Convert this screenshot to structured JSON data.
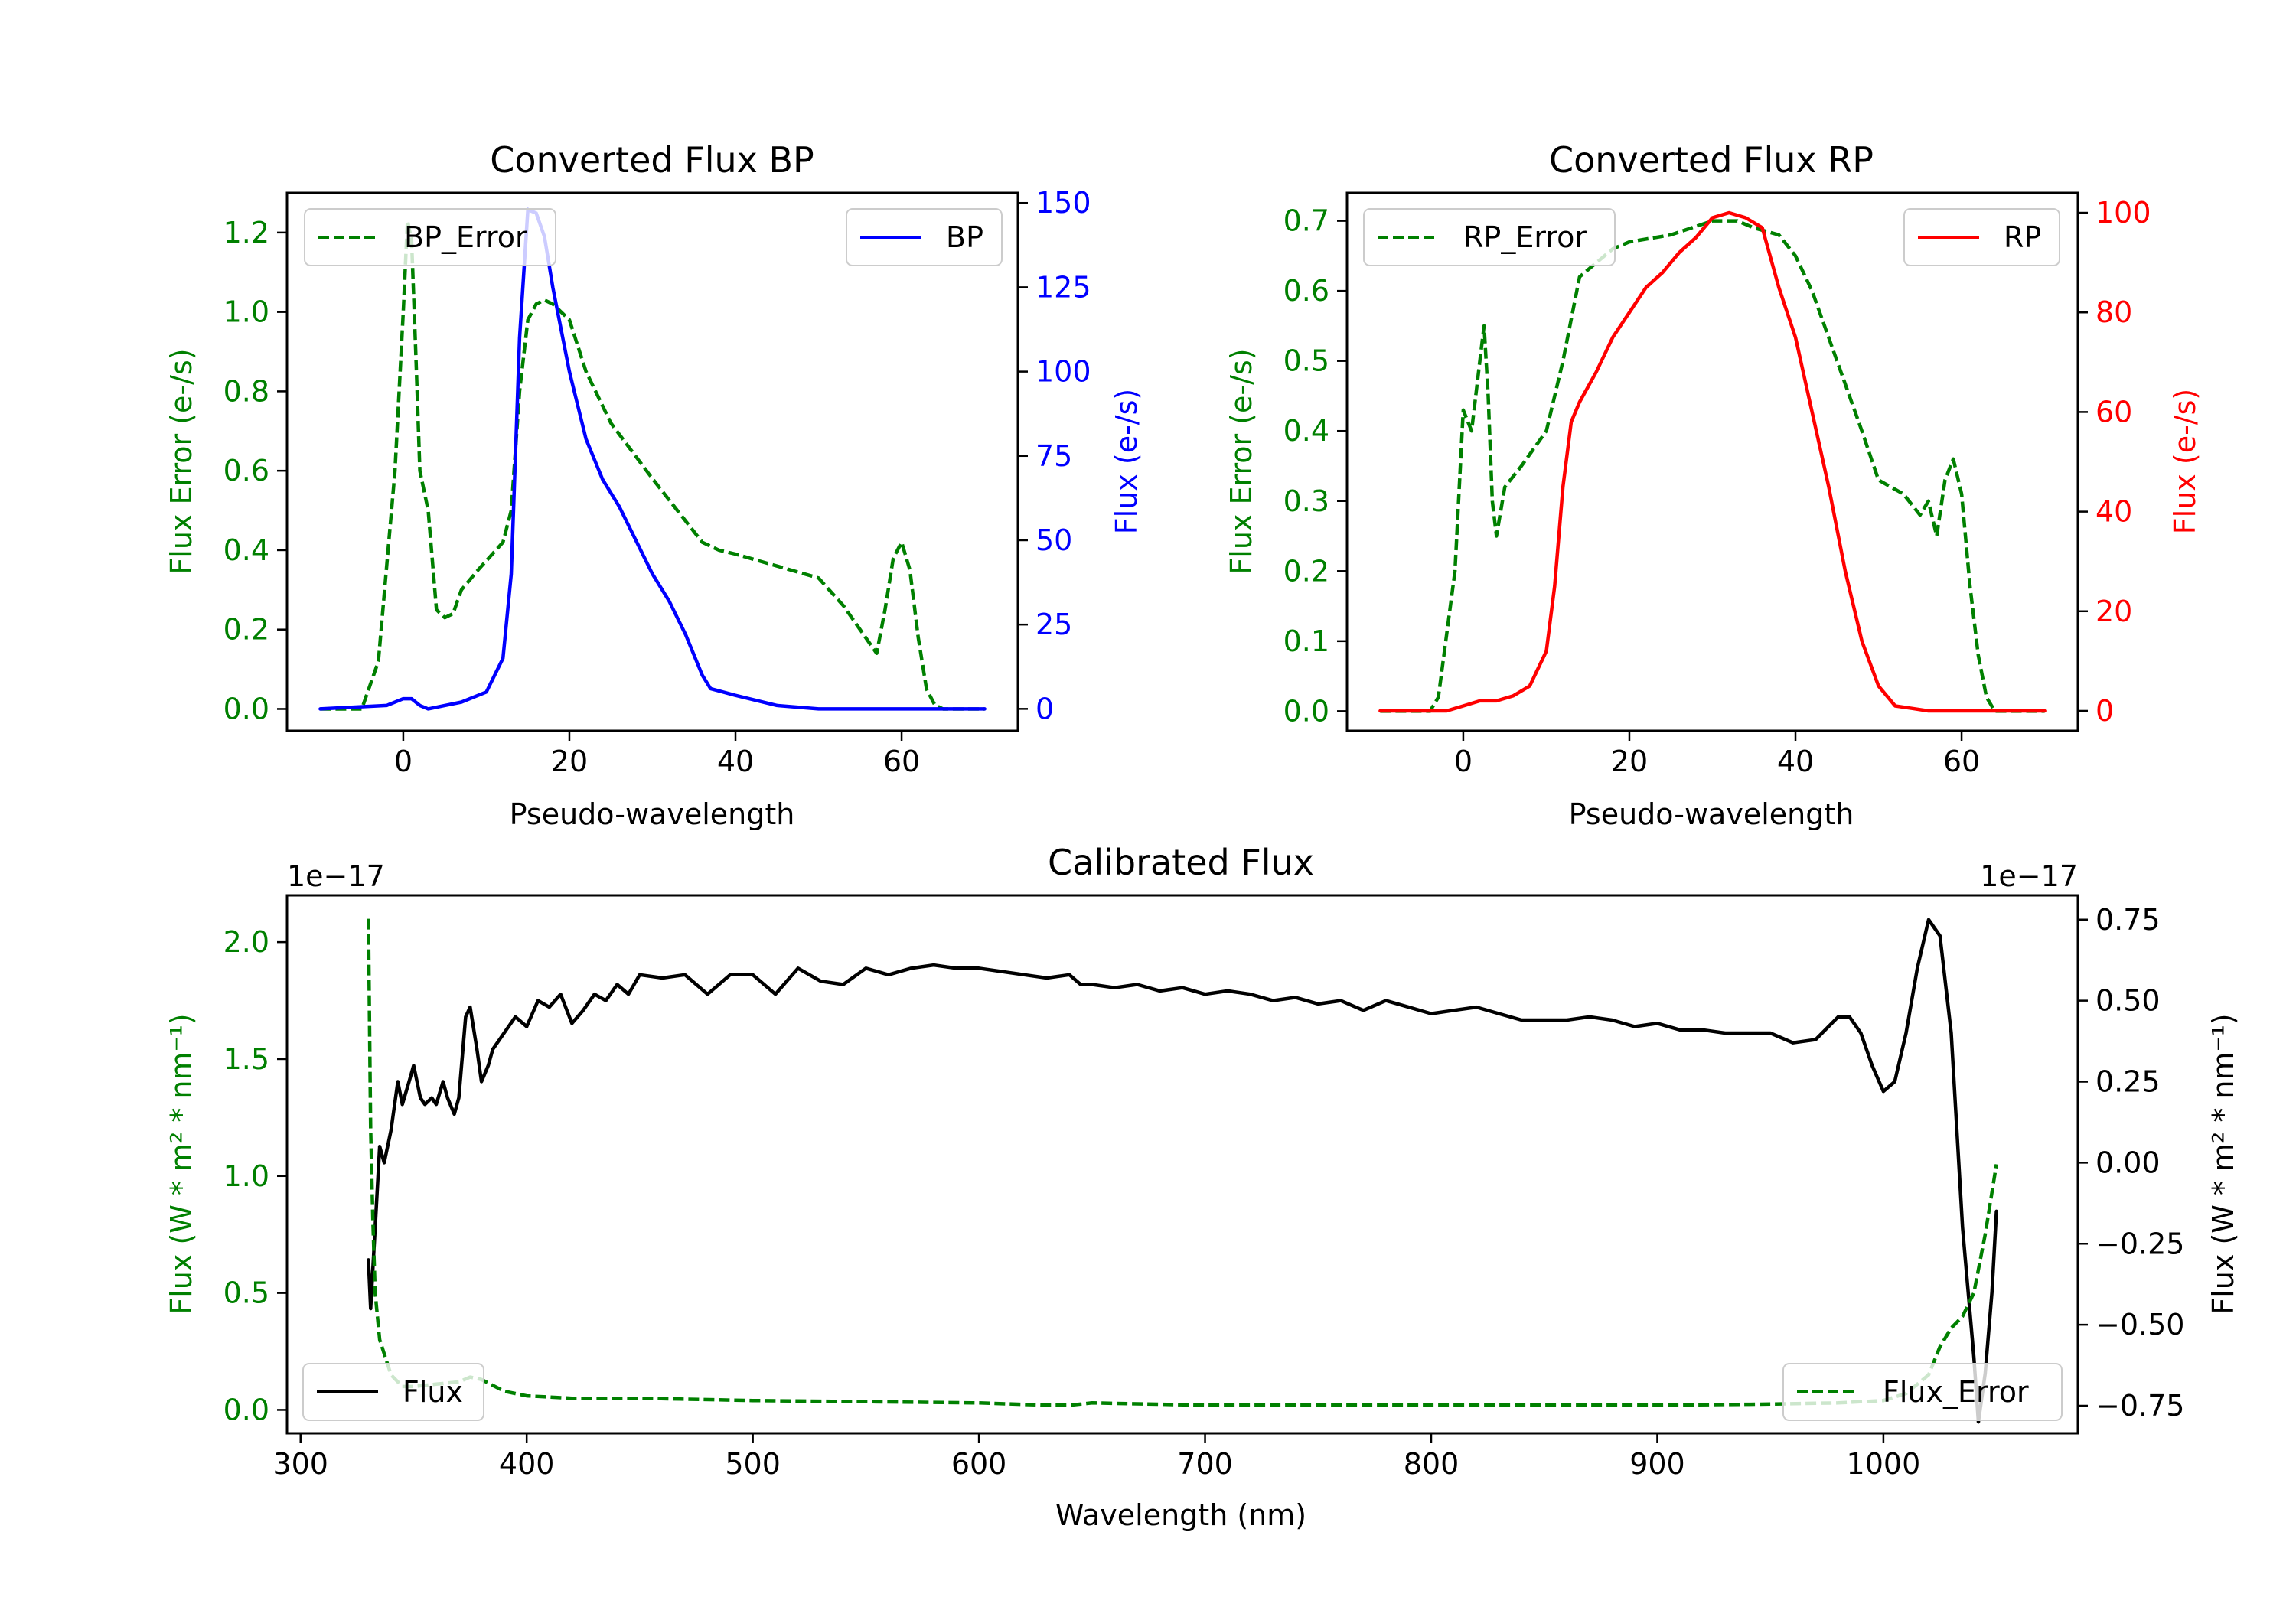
{
  "chart_data": [
    {
      "type": "line",
      "title": "Converted Flux BP",
      "xlabel": "Pseudo-wavelength",
      "xlim": [
        -14,
        74
      ],
      "x_ticks": [
        0,
        20,
        40,
        60
      ],
      "left_axis": {
        "label": "Flux Error (e-/s)",
        "color": "#008000",
        "ylim": [
          -0.055,
          1.3
        ],
        "ticks": [
          0.0,
          0.2,
          0.4,
          0.6,
          0.8,
          1.0,
          1.2
        ],
        "tick_labels": [
          "0.0",
          "0.2",
          "0.4",
          "0.6",
          "0.8",
          "1.0",
          "1.2"
        ]
      },
      "right_axis": {
        "label": "Flux (e-/s)",
        "color": "#0000ff",
        "ylim": [
          -6.5,
          153
        ],
        "ticks": [
          0,
          25,
          50,
          75,
          100,
          125,
          150
        ],
        "tick_labels": [
          "0",
          "25",
          "50",
          "75",
          "100",
          "125",
          "150"
        ]
      },
      "series": [
        {
          "name": "BP_Error",
          "axis": "left",
          "color": "#008000",
          "style": "dashed",
          "x": [
            -10,
            -5,
            -3,
            -1,
            0,
            0.5,
            1,
            1.5,
            2,
            3,
            4,
            5,
            6,
            7,
            9,
            12,
            13,
            14,
            15,
            16,
            17,
            18,
            20,
            22,
            25,
            30,
            33,
            36,
            38,
            40,
            45,
            50,
            53,
            55,
            57,
            58,
            59,
            60,
            61,
            62,
            63,
            64,
            65,
            70
          ],
          "y": [
            0.0,
            0.0,
            0.12,
            0.6,
            1.0,
            1.23,
            1.18,
            0.9,
            0.6,
            0.5,
            0.25,
            0.23,
            0.24,
            0.3,
            0.35,
            0.42,
            0.5,
            0.8,
            0.98,
            1.02,
            1.03,
            1.02,
            0.98,
            0.85,
            0.72,
            0.58,
            0.5,
            0.42,
            0.4,
            0.39,
            0.36,
            0.33,
            0.26,
            0.2,
            0.14,
            0.25,
            0.38,
            0.42,
            0.35,
            0.18,
            0.05,
            0.01,
            0.0,
            0.0
          ]
        },
        {
          "name": "BP",
          "axis": "right",
          "color": "#0000ff",
          "style": "solid",
          "x": [
            -10,
            -2,
            0,
            1,
            2,
            3,
            5,
            7,
            10,
            12,
            13,
            14,
            15,
            16,
            17,
            18,
            20,
            22,
            24,
            26,
            28,
            30,
            32,
            34,
            36,
            37,
            40,
            45,
            50,
            60,
            70
          ],
          "y": [
            0,
            1,
            3,
            3,
            1,
            0,
            1,
            2,
            5,
            15,
            40,
            110,
            148,
            147,
            140,
            125,
            100,
            80,
            68,
            60,
            50,
            40,
            32,
            22,
            10,
            6,
            4,
            1,
            0,
            0,
            0
          ]
        }
      ],
      "legend": [
        {
          "label": "BP_Error",
          "location": "upper-left"
        },
        {
          "label": "BP",
          "location": "upper-right"
        }
      ]
    },
    {
      "type": "line",
      "title": "Converted Flux RP",
      "xlabel": "Pseudo-wavelength",
      "xlim": [
        -14,
        74
      ],
      "x_ticks": [
        0,
        20,
        40,
        60
      ],
      "left_axis": {
        "label": "Flux Error (e-/s)",
        "color": "#008000",
        "ylim": [
          -0.028,
          0.74
        ],
        "ticks": [
          0.0,
          0.1,
          0.2,
          0.3,
          0.4,
          0.5,
          0.6,
          0.7
        ],
        "tick_labels": [
          "0.0",
          "0.1",
          "0.2",
          "0.3",
          "0.4",
          "0.5",
          "0.6",
          "0.7"
        ]
      },
      "right_axis": {
        "label": "Flux (e-/s)",
        "color": "#ff0000",
        "ylim": [
          -4,
          104
        ],
        "ticks": [
          0,
          20,
          40,
          60,
          80,
          100
        ],
        "tick_labels": [
          "0",
          "20",
          "40",
          "60",
          "80",
          "100"
        ]
      },
      "series": [
        {
          "name": "RP_Error",
          "axis": "left",
          "color": "#008000",
          "style": "dashed",
          "x": [
            -10,
            -4,
            -3,
            -1,
            0,
            1,
            2,
            2.5,
            3,
            3.5,
            4,
            5,
            7,
            10,
            12,
            14,
            16,
            18,
            20,
            25,
            30,
            33,
            35,
            38,
            40,
            42,
            45,
            48,
            50,
            53,
            55,
            56,
            57,
            58,
            59,
            60,
            61,
            62,
            63,
            64,
            70
          ],
          "y": [
            0.0,
            0.0,
            0.02,
            0.2,
            0.43,
            0.4,
            0.5,
            0.55,
            0.45,
            0.3,
            0.25,
            0.32,
            0.35,
            0.4,
            0.5,
            0.62,
            0.64,
            0.66,
            0.67,
            0.68,
            0.7,
            0.7,
            0.69,
            0.68,
            0.65,
            0.6,
            0.5,
            0.4,
            0.33,
            0.31,
            0.28,
            0.3,
            0.25,
            0.33,
            0.36,
            0.31,
            0.18,
            0.08,
            0.02,
            0.0,
            0.0
          ]
        },
        {
          "name": "RP",
          "axis": "right",
          "color": "#ff0000",
          "style": "solid",
          "x": [
            -10,
            -2,
            0,
            2,
            4,
            6,
            8,
            10,
            11,
            12,
            13,
            14,
            16,
            18,
            20,
            22,
            24,
            26,
            28,
            30,
            32,
            34,
            36,
            38,
            40,
            42,
            44,
            46,
            48,
            50,
            52,
            54,
            56,
            58,
            60,
            70
          ],
          "y": [
            0,
            0,
            1,
            2,
            2,
            3,
            5,
            12,
            25,
            45,
            58,
            62,
            68,
            75,
            80,
            85,
            88,
            92,
            95,
            99,
            100,
            99,
            97,
            85,
            75,
            60,
            45,
            28,
            14,
            5,
            1,
            0.5,
            0,
            0,
            0,
            0
          ]
        }
      ],
      "legend": [
        {
          "label": "RP_Error",
          "location": "upper-left"
        },
        {
          "label": "RP",
          "location": "upper-right"
        }
      ]
    },
    {
      "type": "line",
      "title": "Calibrated Flux",
      "xlabel": "Wavelength (nm)",
      "xlim": [
        294,
        1086
      ],
      "x_ticks": [
        300,
        400,
        500,
        600,
        700,
        800,
        900,
        1000
      ],
      "left_axis": {
        "label": "Flux (W * m² * nm⁻¹)",
        "color": "#008000",
        "offset_text": "1e−17",
        "ylim": [
          -0.1,
          2.2
        ],
        "ticks": [
          0.0,
          0.5,
          1.0,
          1.5,
          2.0
        ],
        "tick_labels": [
          "0.0",
          "0.5",
          "1.0",
          "1.5",
          "2.0"
        ]
      },
      "right_axis": {
        "label": "Flux (W * m² * nm⁻¹)",
        "color": "#000000",
        "offset_text": "1e−17",
        "ylim": [
          -0.835,
          0.825
        ],
        "ticks": [
          -0.75,
          -0.5,
          -0.25,
          0.0,
          0.25,
          0.5,
          0.75
        ],
        "tick_labels": [
          "−0.75",
          "−0.50",
          "−0.25",
          "0.00",
          "0.25",
          "0.50",
          "0.75"
        ]
      },
      "series": [
        {
          "name": "Flux",
          "axis": "right",
          "color": "#000000",
          "style": "solid",
          "x": [
            330,
            331,
            333,
            335,
            337,
            340,
            343,
            345,
            348,
            350,
            353,
            355,
            358,
            360,
            363,
            365,
            368,
            370,
            373,
            375,
            378,
            380,
            383,
            385,
            390,
            395,
            400,
            405,
            410,
            415,
            420,
            425,
            430,
            435,
            440,
            445,
            450,
            460,
            470,
            480,
            490,
            500,
            510,
            520,
            530,
            540,
            550,
            560,
            570,
            580,
            590,
            600,
            620,
            630,
            640,
            645,
            650,
            660,
            670,
            680,
            690,
            700,
            710,
            720,
            730,
            740,
            750,
            760,
            770,
            780,
            790,
            800,
            810,
            820,
            830,
            840,
            850,
            860,
            870,
            880,
            890,
            900,
            910,
            920,
            930,
            940,
            950,
            960,
            970,
            980,
            985,
            990,
            995,
            1000,
            1005,
            1010,
            1015,
            1020,
            1025,
            1030,
            1035,
            1040,
            1042,
            1045,
            1048,
            1050
          ],
          "y": [
            -0.3,
            -0.45,
            -0.2,
            0.05,
            0.0,
            0.1,
            0.25,
            0.18,
            0.25,
            0.3,
            0.2,
            0.18,
            0.2,
            0.18,
            0.25,
            0.2,
            0.15,
            0.2,
            0.45,
            0.48,
            0.35,
            0.25,
            0.3,
            0.35,
            0.4,
            0.45,
            0.42,
            0.5,
            0.48,
            0.52,
            0.43,
            0.47,
            0.52,
            0.5,
            0.55,
            0.52,
            0.58,
            0.57,
            0.58,
            0.52,
            0.58,
            0.58,
            0.52,
            0.6,
            0.56,
            0.55,
            0.6,
            0.58,
            0.6,
            0.61,
            0.6,
            0.6,
            0.58,
            0.57,
            0.58,
            0.55,
            0.55,
            0.54,
            0.55,
            0.53,
            0.54,
            0.52,
            0.53,
            0.52,
            0.5,
            0.51,
            0.49,
            0.5,
            0.47,
            0.5,
            0.48,
            0.46,
            0.47,
            0.48,
            0.46,
            0.44,
            0.44,
            0.44,
            0.45,
            0.44,
            0.42,
            0.43,
            0.41,
            0.41,
            0.4,
            0.4,
            0.4,
            0.37,
            0.38,
            0.45,
            0.45,
            0.4,
            0.3,
            0.22,
            0.25,
            0.4,
            0.6,
            0.75,
            0.7,
            0.4,
            -0.2,
            -0.6,
            -0.8,
            -0.65,
            -0.4,
            -0.15
          ]
        },
        {
          "name": "Flux_Error",
          "axis": "left",
          "color": "#008000",
          "style": "dashed",
          "x": [
            330,
            331,
            332,
            333,
            335,
            340,
            345,
            350,
            360,
            370,
            375,
            380,
            390,
            400,
            420,
            450,
            500,
            550,
            600,
            630,
            640,
            650,
            700,
            750,
            800,
            850,
            900,
            950,
            980,
            1000,
            1010,
            1020,
            1025,
            1030,
            1035,
            1040,
            1045,
            1050
          ],
          "y": [
            2.1,
            1.2,
            0.8,
            0.5,
            0.3,
            0.15,
            0.1,
            0.1,
            0.11,
            0.12,
            0.14,
            0.13,
            0.08,
            0.06,
            0.05,
            0.05,
            0.04,
            0.035,
            0.03,
            0.02,
            0.02,
            0.03,
            0.02,
            0.02,
            0.02,
            0.02,
            0.02,
            0.025,
            0.03,
            0.04,
            0.07,
            0.15,
            0.27,
            0.35,
            0.4,
            0.5,
            0.75,
            1.05
          ]
        }
      ],
      "legend": [
        {
          "label": "Flux",
          "location": "lower-left"
        },
        {
          "label": "Flux_Error",
          "location": "lower-right"
        }
      ]
    }
  ]
}
